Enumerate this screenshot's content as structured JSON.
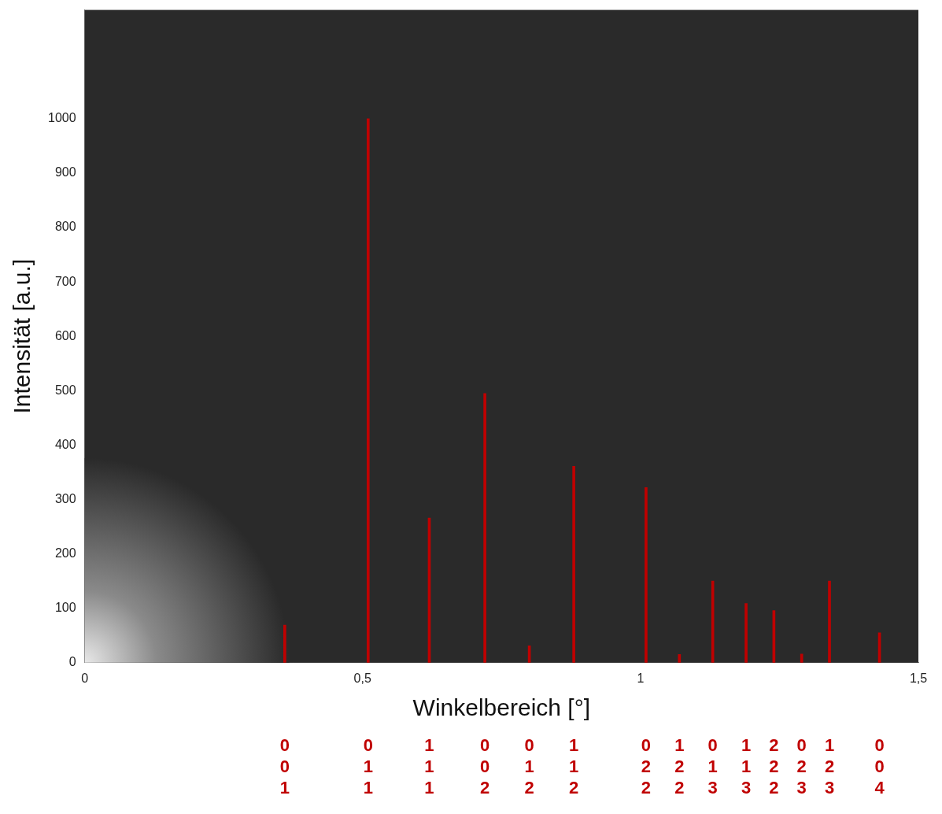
{
  "chart_data": {
    "type": "bar",
    "x_label": "Winkelbereich [°]",
    "y_label": "Intensität [a.u.]",
    "x": [
      0.36,
      0.51,
      0.62,
      0.72,
      0.8,
      0.88,
      1.01,
      1.07,
      1.13,
      1.19,
      1.24,
      1.29,
      1.34,
      1.43
    ],
    "values": [
      69,
      1000,
      266,
      495,
      31,
      361,
      322,
      15,
      150,
      109,
      96,
      16,
      150,
      55
    ],
    "labels": [
      "001",
      "011",
      "111",
      "002",
      "012",
      "112",
      "022",
      "122",
      "013",
      "113",
      "222",
      "023",
      "123",
      "004"
    ],
    "color": "#c00000",
    "xlim": [
      0,
      1.5
    ],
    "xticks": [
      0,
      {
        "value": 0.5,
        "label": "0,5"
      },
      1,
      {
        "value": 1.5,
        "label": "1,5"
      }
    ],
    "ylim": [
      0,
      1200
    ],
    "yticks": [
      0,
      100,
      200,
      300,
      400,
      500,
      600,
      700,
      800,
      900,
      1000
    ],
    "grid": false
  }
}
